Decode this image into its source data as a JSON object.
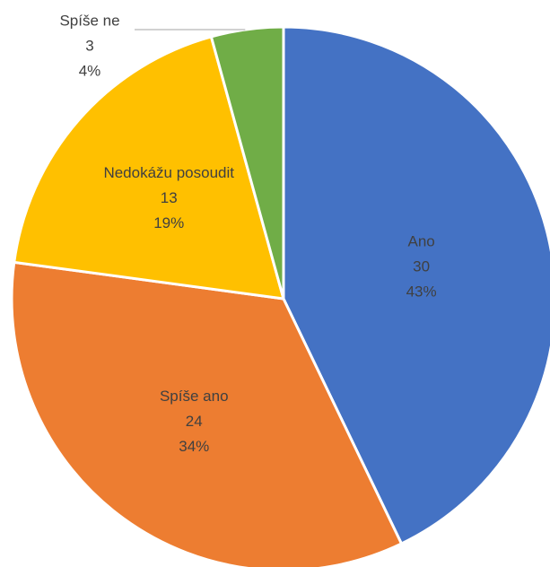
{
  "chart_data": {
    "type": "pie",
    "categories": [
      "Ano",
      "Spíše ano",
      "Nedokážu posoudit",
      "Spíše ne"
    ],
    "values": [
      30,
      24,
      13,
      3
    ],
    "percent_labels": [
      "43%",
      "34%",
      "19%",
      "4%"
    ],
    "colors": [
      "#4472c4",
      "#ed7d31",
      "#ffc000",
      "#70ad47"
    ]
  }
}
